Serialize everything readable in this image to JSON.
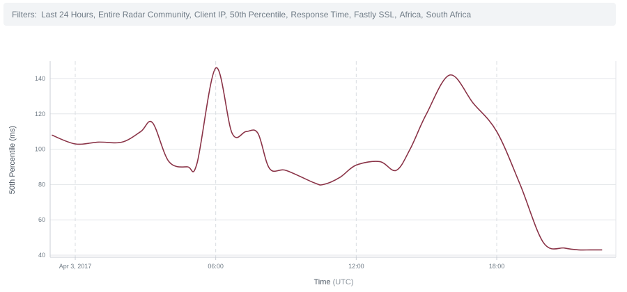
{
  "filters": {
    "label": "Filters:",
    "items": [
      "Last 24 Hours",
      "Entire Radar Community",
      "Client IP",
      "50th Percentile",
      "Response Time",
      "Fastly SSL",
      "Africa",
      "South Africa"
    ]
  },
  "chart_data": {
    "type": "line",
    "title": "",
    "xlabel": "Time",
    "xlabel_unit": "(UTC)",
    "ylabel": "50th Percentile (ms)",
    "x_hours": [
      -1.0,
      0.0,
      1.0,
      2.0,
      2.8,
      3.3,
      4.0,
      4.8,
      5.2,
      6.0,
      6.7,
      7.3,
      7.8,
      8.3,
      9.0,
      10.2,
      10.6,
      11.3,
      12.0,
      13.0,
      13.7,
      14.3,
      15.0,
      16.0,
      17.0,
      18.0,
      19.0,
      20.0,
      20.9,
      21.5,
      22.0,
      22.5
    ],
    "y": [
      108,
      103,
      104,
      104,
      110,
      115,
      93,
      90,
      92,
      146,
      109,
      110,
      109,
      89,
      88,
      81,
      80,
      84,
      91,
      93,
      88,
      100,
      120,
      142,
      126,
      110,
      80,
      47,
      44,
      43,
      43,
      43
    ],
    "xticks": [
      {
        "hour": 0,
        "label": "Apr 3, 2017"
      },
      {
        "hour": 6,
        "label": "06:00"
      },
      {
        "hour": 12,
        "label": "12:00"
      },
      {
        "hour": 18,
        "label": "18:00"
      }
    ],
    "yticks": [
      40,
      60,
      80,
      100,
      120,
      140
    ],
    "ylim": [
      39,
      150
    ],
    "grid": true,
    "colors": {
      "line": "#8a3347",
      "grid": "#e3e6ea",
      "vgrid": "#d9dde2",
      "axis": "#c9ced4"
    }
  }
}
